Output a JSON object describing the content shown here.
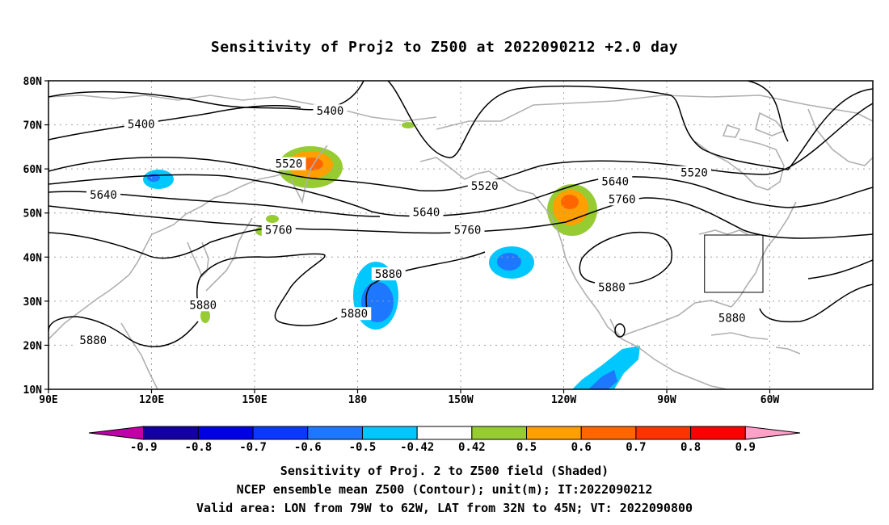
{
  "title": "Sensitivity of Proj2 to Z500 at 2022090212 +2.0 day",
  "map": {
    "lat_labels": [
      "80N",
      "70N",
      "60N",
      "50N",
      "40N",
      "30N",
      "20N",
      "10N"
    ],
    "lon_labels": [
      "90E",
      "120E",
      "150E",
      "180",
      "150W",
      "120W",
      "90W",
      "60W"
    ],
    "contour_labels": [
      {
        "text": "5400",
        "x": 172,
        "y": 73
      },
      {
        "text": "5400",
        "x": 117,
        "y": 70
      },
      {
        "text": "5520",
        "x": 160,
        "y": 61
      },
      {
        "text": "5520",
        "x": -143,
        "y": 56
      },
      {
        "text": "5520",
        "x": -82,
        "y": 59
      },
      {
        "text": "5640",
        "x": 106,
        "y": 54
      },
      {
        "text": "5640",
        "x": -160,
        "y": 50
      },
      {
        "text": "5640",
        "x": -105,
        "y": 57
      },
      {
        "text": "5760",
        "x": 157,
        "y": 46
      },
      {
        "text": "5760",
        "x": -148,
        "y": 46
      },
      {
        "text": "5760",
        "x": -103,
        "y": 53
      },
      {
        "text": "5880",
        "x": -171,
        "y": 36
      },
      {
        "text": "5880",
        "x": 135,
        "y": 29
      },
      {
        "text": "5880",
        "x": 179,
        "y": 27
      },
      {
        "text": "5880",
        "x": -106,
        "y": 33
      },
      {
        "text": "5880",
        "x": -71,
        "y": 26
      },
      {
        "text": "5880",
        "x": 103,
        "y": 21
      }
    ],
    "shading_colors": {
      "lt_0p9": "#c000a8",
      "m0p9": "#1400a0",
      "m0p8": "#0000e8",
      "m0p7": "#0a38ff",
      "m0p6": "#1e78ff",
      "m0p5": "#00c8ff",
      "white": "#ffffff",
      "p0p42": "#96cc32",
      "p0p5": "#ffa000",
      "p0p6": "#ff6600",
      "p0p7": "#ff3200",
      "p0p8": "#ff0000",
      "gt_0p9": "#ffa0c8"
    },
    "valid_box": {
      "lon_min": -79,
      "lon_max": -62,
      "lat_min": 32,
      "lat_max": 45
    }
  },
  "colorbar": {
    "labels": [
      "-0.9",
      "-0.8",
      "-0.7",
      "-0.6",
      "-0.5",
      "-0.42",
      "0.42",
      "0.5",
      "0.6",
      "0.7",
      "0.8",
      "0.9"
    ],
    "colors": [
      "#c000a8",
      "#1400a0",
      "#0000e8",
      "#0a38ff",
      "#1e78ff",
      "#00c8ff",
      "#ffffff",
      "#96cc32",
      "#ffa000",
      "#ff6600",
      "#ff3200",
      "#ff0000",
      "#ffa0c8"
    ]
  },
  "captions": [
    "Sensitivity of Proj. 2 to Z500 field (Shaded)",
    "NCEP ensemble mean Z500 (Contour); unit(m); IT:2022090212",
    "Valid area: LON from 79W to 62W, LAT from 32N to 45N; VT: 2022090800"
  ]
}
